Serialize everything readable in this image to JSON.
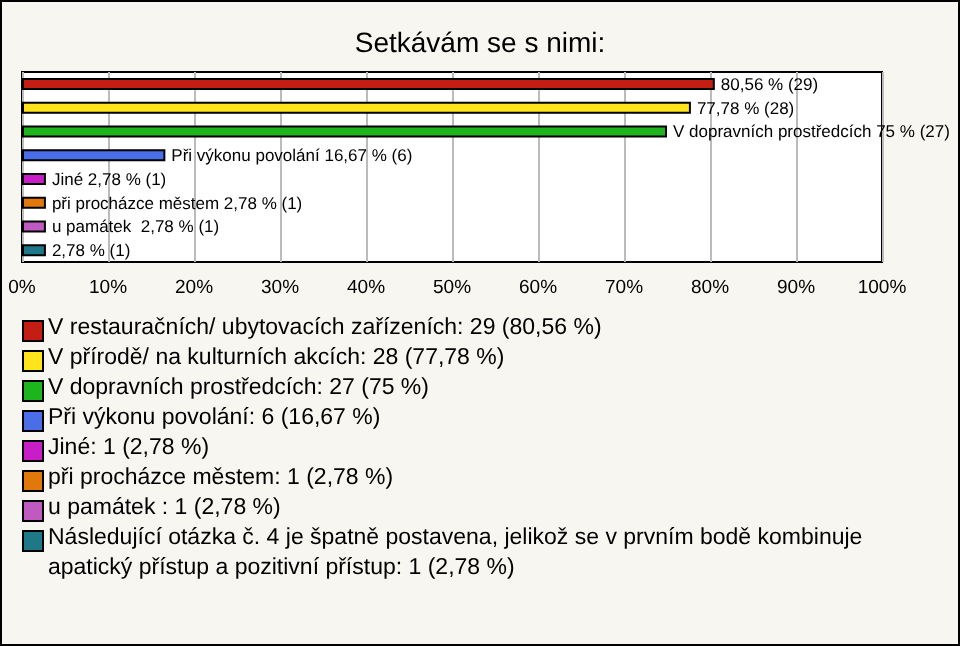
{
  "chart_data": {
    "type": "bar",
    "orientation": "horizontal",
    "title": "Setkávám se s nimi:",
    "categories": [
      null,
      null,
      null,
      null,
      null,
      null,
      null,
      null
    ],
    "values": [
      80.56,
      77.78,
      75,
      16.67,
      2.78,
      2.78,
      2.78,
      2.78
    ],
    "colors": [
      "#c41e14",
      "#ffe41c",
      "#1eb41e",
      "#4a6ee8",
      "#c81ec8",
      "#e0780a",
      "#c05ac0",
      "#1e7888"
    ],
    "value_labels": [
      "80,56 % (29)",
      "77,78 % (28)",
      "V dopravních prostředcích 75 % (27)",
      "Při výkonu povolání 16,67 % (6)",
      "Jiné 2,78 % (1)",
      "při procházce městem 2,78 % (1)",
      "u památek  2,78 % (1)",
      "2,78 % (1)"
    ],
    "xlim": [
      0,
      100
    ],
    "xticks": [
      {
        "value": 0,
        "label": "0%"
      },
      {
        "value": 10,
        "label": "10%"
      },
      {
        "value": 20,
        "label": "20%"
      },
      {
        "value": 30,
        "label": "30%"
      },
      {
        "value": 40,
        "label": "40%"
      },
      {
        "value": 50,
        "label": "50%"
      },
      {
        "value": 60,
        "label": "60%"
      },
      {
        "value": 70,
        "label": "70%"
      },
      {
        "value": 80,
        "label": "80%"
      },
      {
        "value": 90,
        "label": "90%"
      },
      {
        "value": 100,
        "label": "100%"
      }
    ],
    "grid": "x",
    "annotations": [
      "V restauračních/ ubytovacích zařízeních: 29 (80,56 %)",
      "V přírodě/ na kulturních akcích: 28 (77,78 %)",
      "V dopravních prostředcích: 27 (75 %)",
      "Při výkonu povolání: 6 (16,67 %)",
      "Jiné: 1 (2,78 %)",
      "při procházce městem: 1 (2,78 %)",
      "u památek : 1 (2,78 %)",
      "Následující otázka č. 4 je špatně postavena, jelikož se v prvním bodě kombinuje apatický přístup a pozitivní přístup: 1 (2,78 %)"
    ]
  }
}
